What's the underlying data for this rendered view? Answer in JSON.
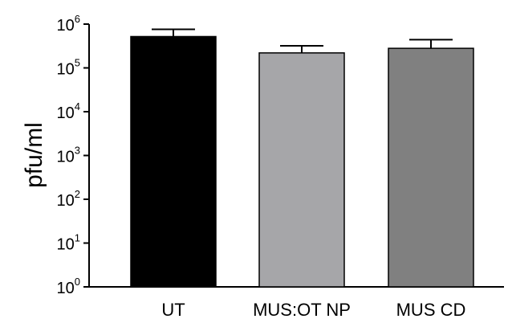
{
  "chart_data": {
    "type": "bar",
    "title": "",
    "xlabel": "",
    "ylabel": "pfu/ml",
    "yscale": "log",
    "ylim": [
      1,
      1000000
    ],
    "grid": false,
    "legend": "none",
    "y_ticks": [
      {
        "base": "10",
        "exp": "0",
        "value": 1
      },
      {
        "base": "10",
        "exp": "1",
        "value": 10
      },
      {
        "base": "10",
        "exp": "2",
        "value": 100
      },
      {
        "base": "10",
        "exp": "3",
        "value": 1000
      },
      {
        "base": "10",
        "exp": "4",
        "value": 10000
      },
      {
        "base": "10",
        "exp": "5",
        "value": 100000
      },
      {
        "base": "10",
        "exp": "6",
        "value": 1000000
      }
    ],
    "categories": [
      "UT",
      "MUS:OT NP",
      "MUS CD"
    ],
    "values": [
      520000,
      220000,
      280000
    ],
    "error_upper": [
      760000,
      320000,
      440000
    ],
    "colors": [
      "#000000",
      "#a6a6a9",
      "#808080"
    ]
  }
}
